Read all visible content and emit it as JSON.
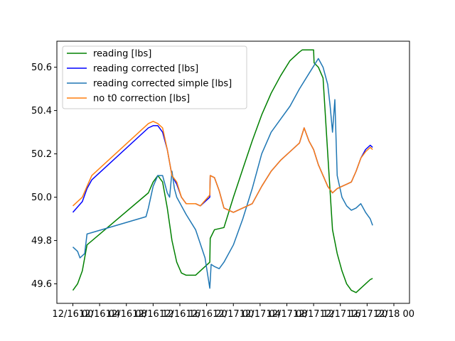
{
  "chart_data": {
    "type": "line",
    "title": "",
    "xlabel": "",
    "ylabel": "",
    "ylim": [
      49.51,
      50.72
    ],
    "grid": false,
    "legend_position": "upper-left",
    "x_tick_labels": [
      "12/16 00",
      "12/16 04",
      "12/16 08",
      "12/16 12",
      "12/16 16",
      "12/16 20",
      "12/17 00",
      "12/17 04",
      "12/17 08",
      "12/17 12",
      "12/17 16",
      "12/17 20",
      "12/18 00"
    ],
    "y_ticks": [
      49.6,
      49.8,
      50.0,
      50.2,
      50.4,
      50.6
    ],
    "y_tick_labels": [
      "49.6",
      "49.8",
      "50.0",
      "50.2",
      "50.4",
      "50.6"
    ],
    "x_unit": "hours since first x tick",
    "series": [
      {
        "name": "reading [lbs]",
        "color": "#008000",
        "points": [
          [
            0,
            49.57
          ],
          [
            1,
            49.6
          ],
          [
            2,
            49.66
          ],
          [
            3,
            49.78
          ],
          [
            16,
            50.02
          ],
          [
            17,
            50.07
          ],
          [
            18,
            50.1
          ],
          [
            19,
            50.07
          ],
          [
            20,
            49.95
          ],
          [
            21,
            49.8
          ],
          [
            22,
            49.7
          ],
          [
            23,
            49.65
          ],
          [
            24,
            49.64
          ],
          [
            26,
            49.64
          ],
          [
            29,
            49.7
          ],
          [
            29.1,
            49.81
          ],
          [
            30,
            49.85
          ],
          [
            32,
            49.86
          ],
          [
            34,
            50.0
          ],
          [
            36,
            50.13
          ],
          [
            38,
            50.26
          ],
          [
            40,
            50.38
          ],
          [
            42,
            50.48
          ],
          [
            44,
            50.56
          ],
          [
            46,
            50.63
          ],
          [
            48,
            50.67
          ],
          [
            48.6,
            50.68
          ],
          [
            51,
            50.68
          ],
          [
            51.1,
            50.62
          ],
          [
            52,
            50.6
          ],
          [
            53,
            50.55
          ],
          [
            54,
            50.2
          ],
          [
            55,
            49.85
          ],
          [
            56,
            49.74
          ],
          [
            57,
            49.66
          ],
          [
            58,
            49.6
          ],
          [
            59,
            49.57
          ],
          [
            60,
            49.56
          ],
          [
            61,
            49.58
          ],
          [
            62,
            49.6
          ],
          [
            63,
            49.62
          ],
          [
            63.5,
            49.625
          ]
        ]
      },
      {
        "name": "reading corrected [lbs]",
        "color": "#0000ff",
        "points": [
          [
            0,
            49.93
          ],
          [
            2,
            49.98
          ],
          [
            3,
            50.04
          ],
          [
            4,
            50.08
          ],
          [
            16,
            50.32
          ],
          [
            17,
            50.33
          ],
          [
            18,
            50.33
          ],
          [
            19,
            50.3
          ],
          [
            20,
            50.22
          ],
          [
            21,
            50.1
          ],
          [
            22,
            50.06
          ],
          [
            23,
            50.0
          ],
          [
            24,
            49.97
          ],
          [
            26,
            49.97
          ],
          [
            27,
            49.96
          ],
          [
            29,
            50.0
          ],
          [
            29.1,
            50.1
          ],
          [
            30,
            50.09
          ],
          [
            31,
            50.03
          ],
          [
            32,
            49.95
          ],
          [
            34,
            49.93
          ],
          [
            36,
            49.95
          ],
          [
            38,
            49.97
          ],
          [
            40,
            50.05
          ],
          [
            42,
            50.12
          ],
          [
            44,
            50.17
          ],
          [
            46,
            50.21
          ],
          [
            48,
            50.25
          ],
          [
            49,
            50.32
          ],
          [
            50,
            50.26
          ],
          [
            51,
            50.22
          ],
          [
            52,
            50.15
          ],
          [
            53,
            50.1
          ],
          [
            54,
            50.05
          ],
          [
            55,
            50.02
          ],
          [
            56,
            50.04
          ],
          [
            57,
            50.05
          ],
          [
            58,
            50.06
          ],
          [
            59,
            50.07
          ],
          [
            60,
            50.12
          ],
          [
            61,
            50.18
          ],
          [
            62,
            50.22
          ],
          [
            63,
            50.24
          ],
          [
            63.5,
            50.23
          ]
        ]
      },
      {
        "name": "reading corrected simple [lbs]",
        "color": "#1f77b4",
        "points": [
          [
            0,
            49.77
          ],
          [
            1,
            49.75
          ],
          [
            1.5,
            49.72
          ],
          [
            2.5,
            49.74
          ],
          [
            3,
            49.83
          ],
          [
            15.5,
            49.91
          ],
          [
            16,
            49.95
          ],
          [
            17,
            50.05
          ],
          [
            18,
            50.1
          ],
          [
            19,
            50.1
          ],
          [
            20,
            50.02
          ],
          [
            20.5,
            50.0
          ],
          [
            21,
            50.12
          ],
          [
            21.5,
            50.04
          ],
          [
            22,
            50.0
          ],
          [
            24,
            49.92
          ],
          [
            26,
            49.85
          ],
          [
            28,
            49.72
          ],
          [
            29,
            49.58
          ],
          [
            29.3,
            49.69
          ],
          [
            30,
            49.68
          ],
          [
            31,
            49.67
          ],
          [
            32,
            49.7
          ],
          [
            34,
            49.78
          ],
          [
            36,
            49.9
          ],
          [
            38,
            50.04
          ],
          [
            40,
            50.2
          ],
          [
            42,
            50.3
          ],
          [
            44,
            50.36
          ],
          [
            46,
            50.42
          ],
          [
            48,
            50.5
          ],
          [
            50,
            50.57
          ],
          [
            52,
            50.64
          ],
          [
            53,
            50.6
          ],
          [
            54,
            50.52
          ],
          [
            54.5,
            50.42
          ],
          [
            55,
            50.3
          ],
          [
            55.5,
            50.45
          ],
          [
            56,
            50.1
          ],
          [
            57,
            50.0
          ],
          [
            58,
            49.96
          ],
          [
            59,
            49.94
          ],
          [
            60,
            49.95
          ],
          [
            61,
            49.97
          ],
          [
            62,
            49.93
          ],
          [
            63,
            49.9
          ],
          [
            63.5,
            49.87
          ]
        ]
      },
      {
        "name": "no t0 correction [lbs]",
        "color": "#ff7f0e",
        "points": [
          [
            0,
            49.96
          ],
          [
            2,
            50.0
          ],
          [
            3,
            50.05
          ],
          [
            4,
            50.1
          ],
          [
            16,
            50.34
          ],
          [
            17,
            50.35
          ],
          [
            18,
            50.34
          ],
          [
            19,
            50.32
          ],
          [
            20,
            50.22
          ],
          [
            21,
            50.1
          ],
          [
            22,
            50.07
          ],
          [
            23,
            50.0
          ],
          [
            24,
            49.97
          ],
          [
            26,
            49.97
          ],
          [
            27,
            49.96
          ],
          [
            29,
            50.01
          ],
          [
            29.1,
            50.1
          ],
          [
            30,
            50.09
          ],
          [
            31,
            50.03
          ],
          [
            32,
            49.95
          ],
          [
            34,
            49.93
          ],
          [
            36,
            49.95
          ],
          [
            38,
            49.97
          ],
          [
            40,
            50.05
          ],
          [
            42,
            50.12
          ],
          [
            44,
            50.17
          ],
          [
            46,
            50.21
          ],
          [
            48,
            50.25
          ],
          [
            49,
            50.32
          ],
          [
            50,
            50.26
          ],
          [
            51,
            50.22
          ],
          [
            52,
            50.15
          ],
          [
            53,
            50.1
          ],
          [
            54,
            50.05
          ],
          [
            55,
            50.02
          ],
          [
            56,
            50.04
          ],
          [
            57,
            50.05
          ],
          [
            58,
            50.06
          ],
          [
            59,
            50.07
          ],
          [
            60,
            50.12
          ],
          [
            61,
            50.18
          ],
          [
            62,
            50.21
          ],
          [
            63,
            50.23
          ],
          [
            63.5,
            50.22
          ]
        ]
      }
    ]
  }
}
